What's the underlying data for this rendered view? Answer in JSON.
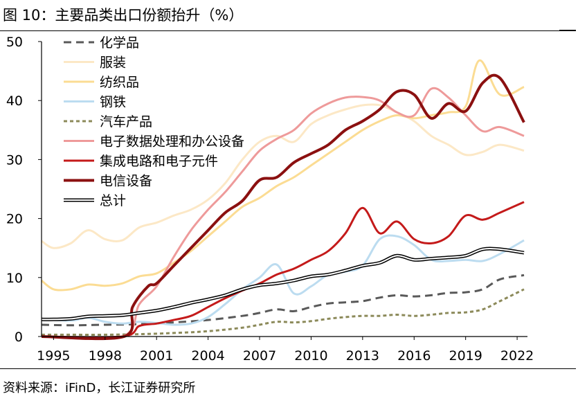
{
  "figure_title": "图 10：主要品类出口份额抬升（%）",
  "source": "资料来源：iFinD，长江证券研究所",
  "chart_data": {
    "type": "line",
    "title": "图 10：主要品类出口份额抬升（%）",
    "xlabel": "",
    "ylabel": "",
    "xlim": [
      1994.3,
      2022.4
    ],
    "ylim": [
      0,
      50
    ],
    "yticks": [
      0,
      10,
      20,
      30,
      40,
      50
    ],
    "xticks": [
      1995,
      1998,
      2001,
      2004,
      2007,
      2010,
      2013,
      2016,
      2019,
      2022
    ],
    "grid": false,
    "legend_position": "top-left",
    "series": [
      {
        "name": "化学品",
        "color": "#595959",
        "style": "dash",
        "points": [
          [
            1994.3,
            2.0
          ],
          [
            1996,
            1.9
          ],
          [
            1998,
            2.0
          ],
          [
            2000,
            2.1
          ],
          [
            2002,
            2.4
          ],
          [
            2004,
            2.8
          ],
          [
            2006,
            3.5
          ],
          [
            2007,
            4.0
          ],
          [
            2008,
            4.6
          ],
          [
            2009,
            4.3
          ],
          [
            2010,
            5.0
          ],
          [
            2011,
            5.6
          ],
          [
            2012,
            5.8
          ],
          [
            2013,
            6.0
          ],
          [
            2014,
            6.6
          ],
          [
            2015,
            7.0
          ],
          [
            2016,
            6.8
          ],
          [
            2017,
            7.0
          ],
          [
            2018,
            7.4
          ],
          [
            2019,
            7.5
          ],
          [
            2020,
            8.0
          ],
          [
            2021,
            9.7
          ],
          [
            2022.4,
            10.4
          ]
        ]
      },
      {
        "name": "服装",
        "color": "#fce8c6",
        "style": "solid",
        "points": [
          [
            1994.3,
            16.2
          ],
          [
            1995,
            15.0
          ],
          [
            1996,
            15.8
          ],
          [
            1997,
            18.0
          ],
          [
            1998,
            16.5
          ],
          [
            1999,
            16.3
          ],
          [
            2000,
            18.5
          ],
          [
            2001,
            19.3
          ],
          [
            2002,
            20.5
          ],
          [
            2003,
            21.5
          ],
          [
            2004,
            23.2
          ],
          [
            2005,
            26.0
          ],
          [
            2006,
            30.0
          ],
          [
            2007,
            33.0
          ],
          [
            2008,
            34.0
          ],
          [
            2009,
            33.0
          ],
          [
            2010,
            36.0
          ],
          [
            2011,
            37.5
          ],
          [
            2012,
            38.5
          ],
          [
            2013,
            39.2
          ],
          [
            2014,
            39.2
          ],
          [
            2015,
            38.0
          ],
          [
            2016,
            36.5
          ],
          [
            2017,
            34.0
          ],
          [
            2018,
            32.5
          ],
          [
            2019,
            30.8
          ],
          [
            2020,
            31.3
          ],
          [
            2021,
            32.5
          ],
          [
            2022.4,
            31.5
          ]
        ]
      },
      {
        "name": "纺织品",
        "color": "#fbdc93",
        "style": "solid",
        "points": [
          [
            1994.3,
            9.5
          ],
          [
            1995,
            8.0
          ],
          [
            1996,
            8.0
          ],
          [
            1997,
            8.8
          ],
          [
            1998,
            8.6
          ],
          [
            1999,
            9.0
          ],
          [
            2000,
            10.2
          ],
          [
            2001,
            10.7
          ],
          [
            2002,
            12.5
          ],
          [
            2003,
            14.5
          ],
          [
            2004,
            17.0
          ],
          [
            2005,
            19.5
          ],
          [
            2006,
            22.0
          ],
          [
            2007,
            23.5
          ],
          [
            2008,
            25.5
          ],
          [
            2009,
            27.0
          ],
          [
            2010,
            29.0
          ],
          [
            2011,
            31.0
          ],
          [
            2012,
            33.0
          ],
          [
            2013,
            35.0
          ],
          [
            2014,
            36.5
          ],
          [
            2015,
            37.5
          ],
          [
            2016,
            37.0
          ],
          [
            2017,
            37.5
          ],
          [
            2018,
            38.0
          ],
          [
            2019,
            39.0
          ],
          [
            2019.8,
            46.8
          ],
          [
            2021,
            41.0
          ],
          [
            2022.4,
            42.3
          ]
        ]
      },
      {
        "name": "钢铁",
        "color": "#bcdcf0",
        "style": "solid",
        "points": [
          [
            1994.3,
            3.0
          ],
          [
            1996,
            2.7
          ],
          [
            1997,
            3.2
          ],
          [
            1998,
            2.5
          ],
          [
            1999,
            2.2
          ],
          [
            2000,
            2.5
          ],
          [
            2001,
            2.3
          ],
          [
            2002,
            2.0
          ],
          [
            2003,
            2.2
          ],
          [
            2004,
            3.3
          ],
          [
            2005,
            5.5
          ],
          [
            2006,
            8.0
          ],
          [
            2007,
            10.0
          ],
          [
            2008,
            12.2
          ],
          [
            2009,
            7.3
          ],
          [
            2010,
            8.5
          ],
          [
            2011,
            10.5
          ],
          [
            2012,
            11.0
          ],
          [
            2013,
            12.0
          ],
          [
            2014,
            16.5
          ],
          [
            2015,
            17.0
          ],
          [
            2016,
            15.5
          ],
          [
            2017,
            13.0
          ],
          [
            2018,
            12.8
          ],
          [
            2019,
            13.0
          ],
          [
            2020,
            12.8
          ],
          [
            2021,
            14.0
          ],
          [
            2022.4,
            16.3
          ]
        ]
      },
      {
        "name": "汽车产品",
        "color": "#8c8a5a",
        "style": "dot",
        "points": [
          [
            1994.3,
            0.3
          ],
          [
            1996,
            0.3
          ],
          [
            1998,
            0.3
          ],
          [
            2000,
            0.4
          ],
          [
            2002,
            0.6
          ],
          [
            2004,
            0.9
          ],
          [
            2006,
            1.5
          ],
          [
            2007,
            2.0
          ],
          [
            2008,
            2.5
          ],
          [
            2009,
            2.4
          ],
          [
            2010,
            2.6
          ],
          [
            2011,
            3.0
          ],
          [
            2012,
            3.3
          ],
          [
            2013,
            3.5
          ],
          [
            2014,
            3.5
          ],
          [
            2015,
            3.7
          ],
          [
            2016,
            3.5
          ],
          [
            2017,
            3.7
          ],
          [
            2018,
            4.0
          ],
          [
            2019,
            4.1
          ],
          [
            2020,
            4.6
          ],
          [
            2021,
            6.0
          ],
          [
            2022.4,
            8.0
          ]
        ]
      },
      {
        "name": "电子数据处理和办公设备",
        "color": "#ee9a9a",
        "style": "solid",
        "points": [
          [
            1994.3,
            0
          ],
          [
            1999,
            0
          ],
          [
            2000,
            5.5
          ],
          [
            2001,
            8.5
          ],
          [
            2002,
            13.5
          ],
          [
            2003,
            18.0
          ],
          [
            2004,
            21.5
          ],
          [
            2005,
            24.5
          ],
          [
            2006,
            28.0
          ],
          [
            2007,
            31.5
          ],
          [
            2008,
            33.5
          ],
          [
            2009,
            35.0
          ],
          [
            2010,
            37.8
          ],
          [
            2011,
            39.5
          ],
          [
            2012,
            40.5
          ],
          [
            2013,
            40.6
          ],
          [
            2014,
            40.0
          ],
          [
            2015,
            38.0
          ],
          [
            2016,
            37.5
          ],
          [
            2017,
            42.0
          ],
          [
            2018,
            40.5
          ],
          [
            2019,
            37.5
          ],
          [
            2020,
            34.8
          ],
          [
            2021,
            35.5
          ],
          [
            2022.4,
            34.0
          ]
        ]
      },
      {
        "name": "集成电路和电子元件",
        "color": "#c41a1a",
        "style": "solid",
        "points": [
          [
            1994.3,
            0
          ],
          [
            1999,
            0
          ],
          [
            2000,
            1.8
          ],
          [
            2001,
            2.2
          ],
          [
            2002,
            2.8
          ],
          [
            2003,
            3.5
          ],
          [
            2004,
            5.0
          ],
          [
            2005,
            6.5
          ],
          [
            2006,
            7.8
          ],
          [
            2007,
            9.0
          ],
          [
            2008,
            10.5
          ],
          [
            2009,
            11.5
          ],
          [
            2010,
            13.0
          ],
          [
            2011,
            14.5
          ],
          [
            2012,
            17.5
          ],
          [
            2013,
            21.8
          ],
          [
            2014,
            17.5
          ],
          [
            2015,
            19.5
          ],
          [
            2016,
            16.5
          ],
          [
            2017,
            15.8
          ],
          [
            2018,
            17.0
          ],
          [
            2019,
            20.5
          ],
          [
            2020,
            19.8
          ],
          [
            2021,
            21.0
          ],
          [
            2022.4,
            22.8
          ]
        ]
      },
      {
        "name": "电信设备",
        "color": "#8b1010",
        "style": "thick",
        "points": [
          [
            1994.3,
            0
          ],
          [
            1999.1,
            0
          ],
          [
            1999.6,
            5.0
          ],
          [
            2000.5,
            8.5
          ],
          [
            2001,
            9.0
          ],
          [
            2002,
            12.0
          ],
          [
            2003,
            15.0
          ],
          [
            2004,
            18.0
          ],
          [
            2005,
            21.0
          ],
          [
            2006,
            23.0
          ],
          [
            2007,
            26.5
          ],
          [
            2008,
            27.0
          ],
          [
            2009,
            29.5
          ],
          [
            2010,
            31.0
          ],
          [
            2011,
            32.5
          ],
          [
            2012,
            35.0
          ],
          [
            2013,
            36.5
          ],
          [
            2014,
            38.5
          ],
          [
            2015,
            41.5
          ],
          [
            2016,
            41.0
          ],
          [
            2017,
            37.0
          ],
          [
            2018,
            39.5
          ],
          [
            2019,
            38.2
          ],
          [
            2020,
            43.0
          ],
          [
            2021,
            43.8
          ],
          [
            2022.4,
            36.3
          ]
        ]
      },
      {
        "name": "总计",
        "color": "#000000",
        "style": "double",
        "points": [
          [
            1994.3,
            2.9
          ],
          [
            1995,
            2.9
          ],
          [
            1996,
            3.0
          ],
          [
            1997,
            3.4
          ],
          [
            1998,
            3.5
          ],
          [
            1999,
            3.6
          ],
          [
            2000,
            4.0
          ],
          [
            2001,
            4.4
          ],
          [
            2002,
            5.0
          ],
          [
            2003,
            5.7
          ],
          [
            2004,
            6.3
          ],
          [
            2005,
            7.0
          ],
          [
            2006,
            8.0
          ],
          [
            2007,
            8.7
          ],
          [
            2008,
            9.0
          ],
          [
            2009,
            9.5
          ],
          [
            2010,
            10.2
          ],
          [
            2011,
            10.5
          ],
          [
            2012,
            11.2
          ],
          [
            2013,
            12.0
          ],
          [
            2014,
            12.5
          ],
          [
            2015,
            13.7
          ],
          [
            2016,
            13.0
          ],
          [
            2017,
            13.2
          ],
          [
            2018,
            13.4
          ],
          [
            2019,
            13.7
          ],
          [
            2020,
            14.8
          ],
          [
            2021,
            14.8
          ],
          [
            2022.4,
            14.2
          ]
        ]
      }
    ]
  }
}
